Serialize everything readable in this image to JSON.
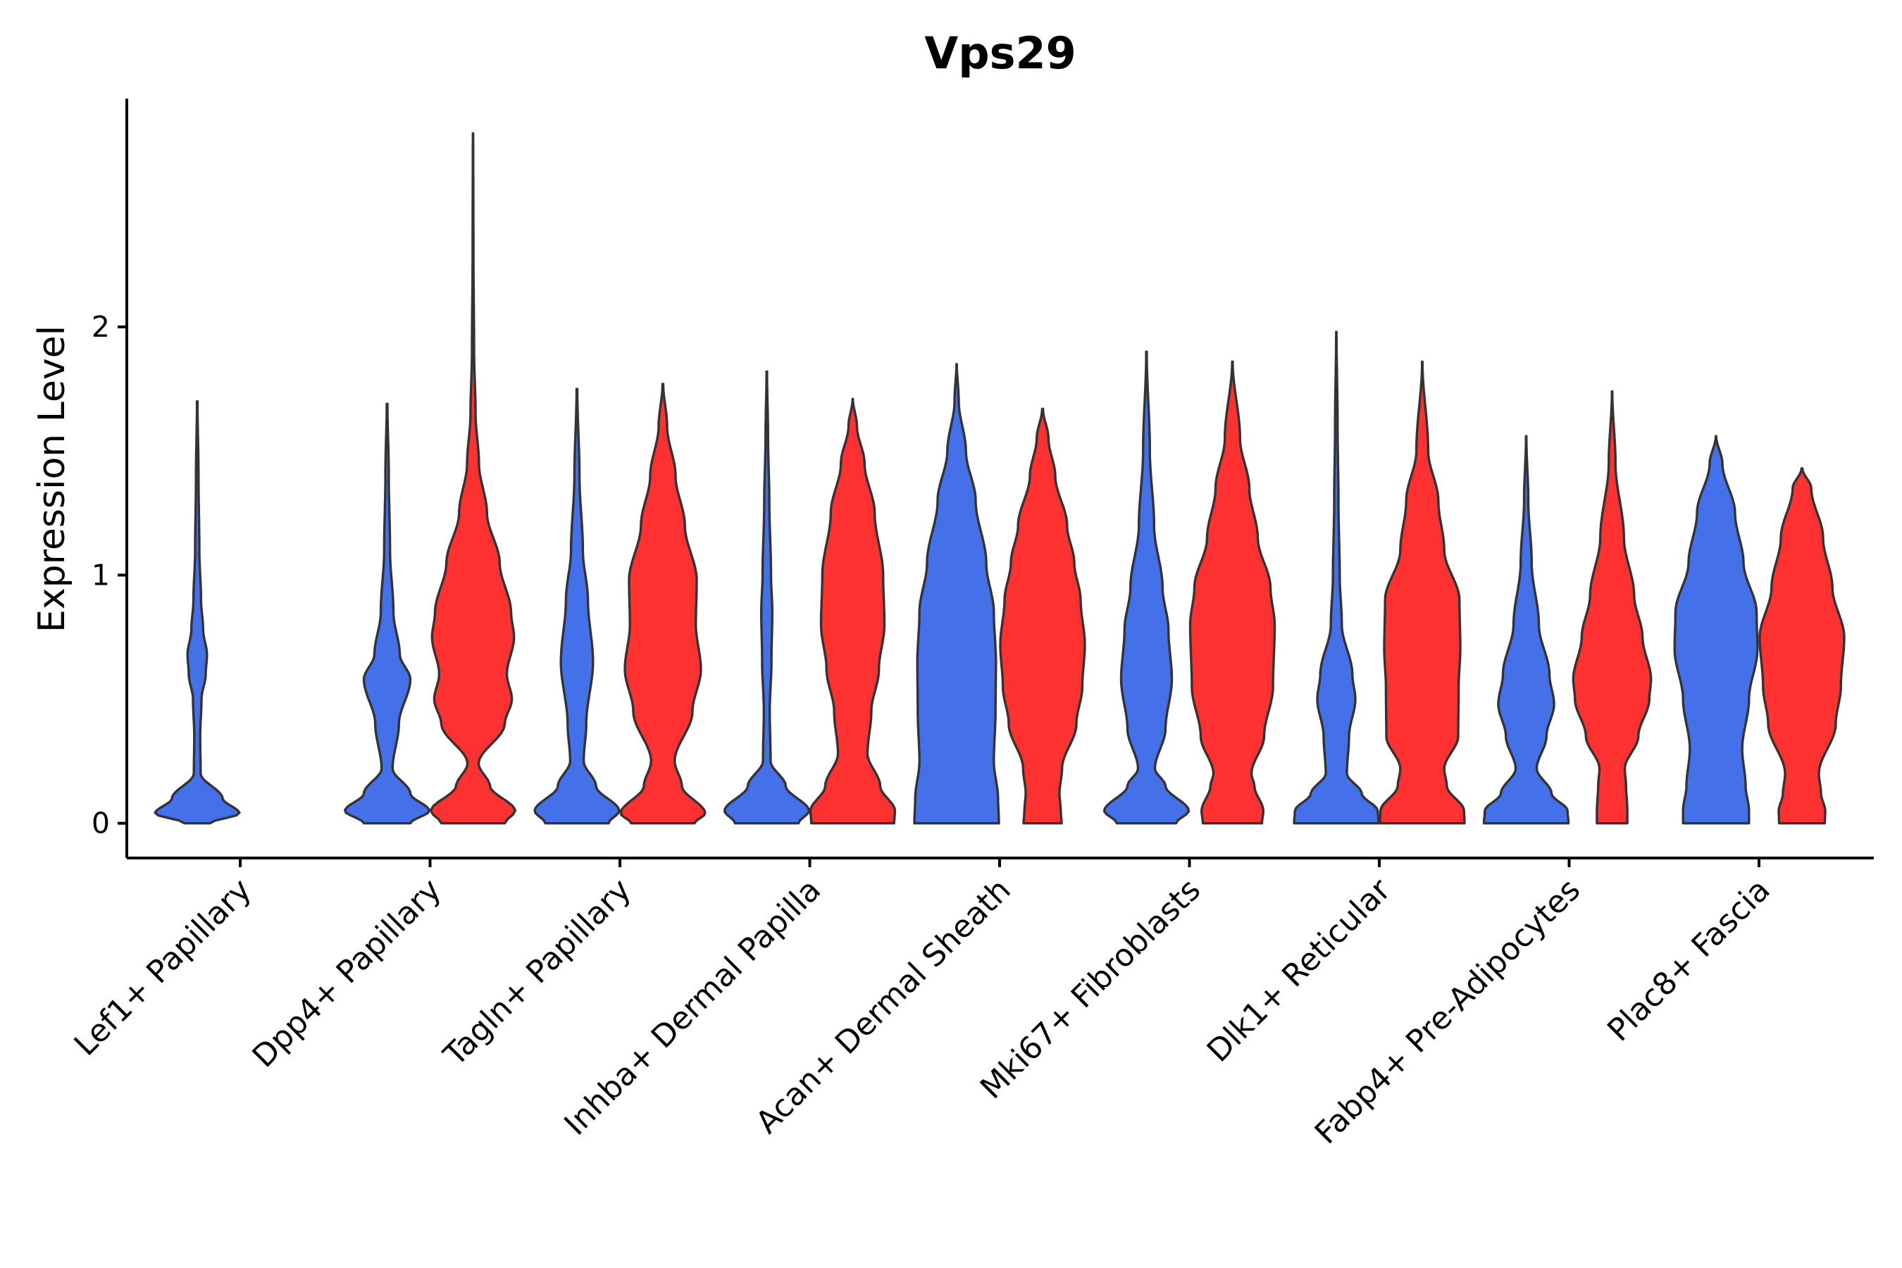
{
  "chart_data": {
    "type": "violin",
    "title": "Vps29",
    "xlabel": "",
    "ylabel": "Expression Level",
    "ylim": [
      -0.14,
      2.92
    ],
    "yticks": [
      0,
      1,
      2
    ],
    "grid": false,
    "legend": "none",
    "group_colors": {
      "blue": "#4470EA",
      "red": "#FF3131"
    },
    "categories": [
      "Lef1+ Papillary",
      "Dpp4+ Papillary",
      "Tagln+ Papillary",
      "Inhba+ Dermal Papilla",
      "Acan+ Dermal Sheath",
      "Mki67+ Fibroblasts",
      "Dlk1+ Reticular",
      "Fabp4+ Pre-Adipocytes",
      "Plac8+ Fascia"
    ],
    "violins": [
      {
        "category": "Lef1+ Papillary",
        "group": "blue",
        "max": 1.7,
        "density": [
          [
            0,
            0.3
          ],
          [
            0.04,
            1
          ],
          [
            0.1,
            0.6
          ],
          [
            0.2,
            0.08
          ],
          [
            0.35,
            0.07
          ],
          [
            0.5,
            0.1
          ],
          [
            0.6,
            0.2
          ],
          [
            0.68,
            0.23
          ],
          [
            0.78,
            0.14
          ],
          [
            0.9,
            0.09
          ],
          [
            1.1,
            0.05
          ],
          [
            1.4,
            0.03
          ],
          [
            1.7,
            0.006
          ]
        ]
      },
      {
        "category": "Dpp4+ Papillary",
        "group": "blue",
        "max": 1.69,
        "density": [
          [
            0,
            0.55
          ],
          [
            0.05,
            1
          ],
          [
            0.12,
            0.55
          ],
          [
            0.22,
            0.13
          ],
          [
            0.4,
            0.28
          ],
          [
            0.58,
            0.55
          ],
          [
            0.68,
            0.3
          ],
          [
            0.85,
            0.15
          ],
          [
            1.1,
            0.07
          ],
          [
            1.4,
            0.04
          ],
          [
            1.69,
            0.008
          ]
        ]
      },
      {
        "category": "Dpp4+ Papillary",
        "group": "red",
        "max": 2.78,
        "density": [
          [
            0,
            0.75
          ],
          [
            0.05,
            1
          ],
          [
            0.15,
            0.4
          ],
          [
            0.24,
            0.13
          ],
          [
            0.4,
            0.75
          ],
          [
            0.5,
            0.92
          ],
          [
            0.6,
            0.8
          ],
          [
            0.75,
            0.97
          ],
          [
            0.85,
            0.9
          ],
          [
            1.05,
            0.63
          ],
          [
            1.25,
            0.33
          ],
          [
            1.45,
            0.14
          ],
          [
            1.65,
            0.06
          ],
          [
            1.9,
            0.025
          ],
          [
            2.3,
            0.01
          ],
          [
            2.78,
            0.004
          ]
        ]
      },
      {
        "category": "Tagln+ Papillary",
        "group": "blue",
        "max": 1.75,
        "density": [
          [
            0,
            0.75
          ],
          [
            0.05,
            1
          ],
          [
            0.15,
            0.45
          ],
          [
            0.25,
            0.16
          ],
          [
            0.4,
            0.22
          ],
          [
            0.65,
            0.38
          ],
          [
            0.9,
            0.26
          ],
          [
            1.1,
            0.14
          ],
          [
            1.4,
            0.06
          ],
          [
            1.75,
            0.008
          ]
        ]
      },
      {
        "category": "Tagln+ Papillary",
        "group": "red",
        "max": 1.77,
        "density": [
          [
            0,
            0.75
          ],
          [
            0.04,
            1
          ],
          [
            0.15,
            0.45
          ],
          [
            0.25,
            0.28
          ],
          [
            0.45,
            0.7
          ],
          [
            0.62,
            0.9
          ],
          [
            0.8,
            0.78
          ],
          [
            0.98,
            0.8
          ],
          [
            1.2,
            0.52
          ],
          [
            1.4,
            0.3
          ],
          [
            1.6,
            0.1
          ],
          [
            1.77,
            0.008
          ]
        ]
      },
      {
        "category": "Inhba+ Dermal Papilla",
        "group": "blue",
        "max": 1.82,
        "density": [
          [
            0,
            0.75
          ],
          [
            0.05,
            1
          ],
          [
            0.15,
            0.45
          ],
          [
            0.25,
            0.09
          ],
          [
            0.45,
            0.07
          ],
          [
            0.65,
            0.11
          ],
          [
            0.85,
            0.13
          ],
          [
            1.0,
            0.1
          ],
          [
            1.3,
            0.06
          ],
          [
            1.55,
            0.03
          ],
          [
            1.82,
            0.006
          ]
        ]
      },
      {
        "category": "Inhba+ Dermal Papilla",
        "group": "red",
        "max": 1.71,
        "density": [
          [
            0,
            0.98
          ],
          [
            0.05,
            1
          ],
          [
            0.15,
            0.65
          ],
          [
            0.28,
            0.35
          ],
          [
            0.45,
            0.44
          ],
          [
            0.62,
            0.62
          ],
          [
            0.8,
            0.75
          ],
          [
            1.0,
            0.72
          ],
          [
            1.25,
            0.52
          ],
          [
            1.45,
            0.28
          ],
          [
            1.6,
            0.1
          ],
          [
            1.71,
            0.004
          ]
        ]
      },
      {
        "category": "Acan+ Dermal Sheath",
        "group": "blue",
        "max": 1.85,
        "density": [
          [
            0,
            1
          ],
          [
            0.1,
            0.98
          ],
          [
            0.25,
            0.88
          ],
          [
            0.45,
            0.92
          ],
          [
            0.65,
            0.93
          ],
          [
            0.85,
            0.88
          ],
          [
            1.05,
            0.7
          ],
          [
            1.3,
            0.45
          ],
          [
            1.5,
            0.22
          ],
          [
            1.7,
            0.05
          ],
          [
            1.85,
            0.004
          ]
        ]
      },
      {
        "category": "Acan+ Dermal Sheath",
        "group": "red",
        "max": 1.67,
        "density": [
          [
            0,
            0.45
          ],
          [
            0.05,
            0.43
          ],
          [
            0.12,
            0.4
          ],
          [
            0.22,
            0.46
          ],
          [
            0.4,
            0.8
          ],
          [
            0.55,
            0.94
          ],
          [
            0.72,
            1
          ],
          [
            0.9,
            0.9
          ],
          [
            1.05,
            0.75
          ],
          [
            1.2,
            0.58
          ],
          [
            1.4,
            0.3
          ],
          [
            1.55,
            0.14
          ],
          [
            1.67,
            0.01
          ]
        ]
      },
      {
        "category": "Mki67+ Fibroblasts",
        "group": "blue",
        "max": 1.9,
        "density": [
          [
            0,
            0.7
          ],
          [
            0.05,
            1
          ],
          [
            0.15,
            0.45
          ],
          [
            0.22,
            0.2
          ],
          [
            0.38,
            0.45
          ],
          [
            0.58,
            0.6
          ],
          [
            0.78,
            0.52
          ],
          [
            0.95,
            0.38
          ],
          [
            1.2,
            0.18
          ],
          [
            1.5,
            0.08
          ],
          [
            1.9,
            0.006
          ]
        ]
      },
      {
        "category": "Mki67+ Fibroblasts",
        "group": "red",
        "max": 1.86,
        "density": [
          [
            0,
            0.7
          ],
          [
            0.05,
            0.73
          ],
          [
            0.15,
            0.52
          ],
          [
            0.2,
            0.45
          ],
          [
            0.35,
            0.75
          ],
          [
            0.55,
            0.96
          ],
          [
            0.8,
            1
          ],
          [
            0.95,
            0.9
          ],
          [
            1.15,
            0.6
          ],
          [
            1.35,
            0.4
          ],
          [
            1.55,
            0.18
          ],
          [
            1.86,
            0.006
          ]
        ]
      },
      {
        "category": "Dlk1+ Reticular",
        "group": "blue",
        "max": 1.98,
        "density": [
          [
            0,
            1
          ],
          [
            0.05,
            0.98
          ],
          [
            0.12,
            0.6
          ],
          [
            0.2,
            0.25
          ],
          [
            0.35,
            0.3
          ],
          [
            0.5,
            0.45
          ],
          [
            0.6,
            0.38
          ],
          [
            0.8,
            0.13
          ],
          [
            1.0,
            0.08
          ],
          [
            1.3,
            0.05
          ],
          [
            1.6,
            0.03
          ],
          [
            1.98,
            0.004
          ]
        ]
      },
      {
        "category": "Dlk1+ Reticular",
        "group": "red",
        "max": 1.86,
        "density": [
          [
            0,
            1
          ],
          [
            0.05,
            0.99
          ],
          [
            0.15,
            0.58
          ],
          [
            0.22,
            0.52
          ],
          [
            0.35,
            0.85
          ],
          [
            0.55,
            0.86
          ],
          [
            0.7,
            0.9
          ],
          [
            0.9,
            0.88
          ],
          [
            1.1,
            0.52
          ],
          [
            1.3,
            0.38
          ],
          [
            1.5,
            0.14
          ],
          [
            1.86,
            0.004
          ]
        ]
      },
      {
        "category": "Fabp4+ Pre-Adipocytes",
        "group": "blue",
        "max": 1.56,
        "density": [
          [
            0,
            1
          ],
          [
            0.05,
            0.98
          ],
          [
            0.12,
            0.6
          ],
          [
            0.22,
            0.25
          ],
          [
            0.35,
            0.48
          ],
          [
            0.48,
            0.66
          ],
          [
            0.6,
            0.55
          ],
          [
            0.8,
            0.3
          ],
          [
            1.05,
            0.13
          ],
          [
            1.3,
            0.05
          ],
          [
            1.56,
            0.004
          ]
        ]
      },
      {
        "category": "Fabp4+ Pre-Adipocytes",
        "group": "red",
        "max": 1.74,
        "density": [
          [
            0,
            0.36
          ],
          [
            0.05,
            0.36
          ],
          [
            0.15,
            0.33
          ],
          [
            0.22,
            0.3
          ],
          [
            0.35,
            0.62
          ],
          [
            0.5,
            0.88
          ],
          [
            0.58,
            0.92
          ],
          [
            0.75,
            0.72
          ],
          [
            0.92,
            0.52
          ],
          [
            1.15,
            0.28
          ],
          [
            1.45,
            0.08
          ],
          [
            1.74,
            0.004
          ]
        ]
      },
      {
        "category": "Plac8+ Fascia",
        "group": "blue",
        "max": 1.56,
        "density": [
          [
            0,
            0.78
          ],
          [
            0.05,
            0.78
          ],
          [
            0.15,
            0.7
          ],
          [
            0.3,
            0.62
          ],
          [
            0.5,
            0.78
          ],
          [
            0.7,
            0.98
          ],
          [
            0.85,
            0.96
          ],
          [
            1.05,
            0.65
          ],
          [
            1.25,
            0.45
          ],
          [
            1.45,
            0.15
          ],
          [
            1.56,
            0.004
          ]
        ]
      },
      {
        "category": "Plac8+ Fascia",
        "group": "red",
        "max": 1.43,
        "density": [
          [
            0,
            0.54
          ],
          [
            0.05,
            0.55
          ],
          [
            0.12,
            0.45
          ],
          [
            0.2,
            0.4
          ],
          [
            0.4,
            0.8
          ],
          [
            0.55,
            0.92
          ],
          [
            0.75,
            1
          ],
          [
            0.95,
            0.72
          ],
          [
            1.15,
            0.5
          ],
          [
            1.35,
            0.22
          ],
          [
            1.43,
            0.01
          ]
        ]
      }
    ]
  }
}
